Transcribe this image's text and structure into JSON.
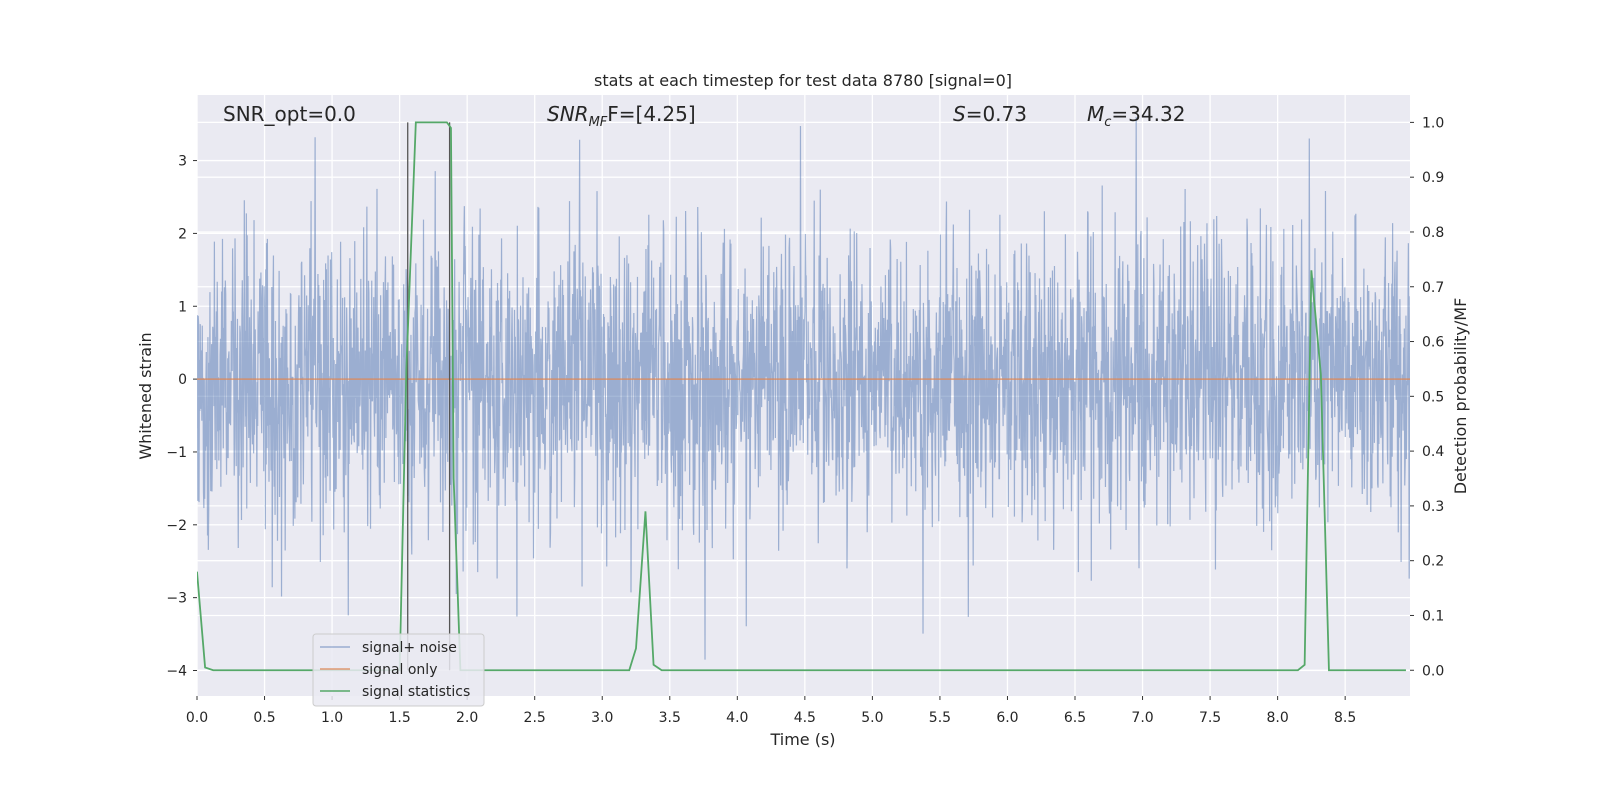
{
  "chart_data": {
    "type": "line",
    "title": "stats at each timestep for test data 8780 [signal=0]",
    "xlabel": "Time (s)",
    "ylabel": "Whitened strain",
    "ylabel_right": "Detection probability/MF",
    "xlim": [
      0,
      8.98
    ],
    "ylim": [
      -4.35,
      3.9
    ],
    "ylim_right": [
      -0.047,
      1.05
    ],
    "x_ticks": [
      0.0,
      0.5,
      1.0,
      1.5,
      2.0,
      2.5,
      3.0,
      3.5,
      4.0,
      4.5,
      5.0,
      5.5,
      6.0,
      6.5,
      7.0,
      7.5,
      8.0,
      8.5
    ],
    "x_tick_labels": [
      "0.0",
      "0.5",
      "1.0",
      "1.5",
      "2.0",
      "2.5",
      "3.0",
      "3.5",
      "4.0",
      "4.5",
      "5.0",
      "5.5",
      "6.0",
      "6.5",
      "7.0",
      "7.5",
      "8.0",
      "8.5"
    ],
    "y_ticks": [
      3,
      2,
      1,
      0,
      -1,
      -2,
      -3,
      -4
    ],
    "y_tick_labels": [
      "3",
      "2",
      "1",
      "0",
      "−1",
      "−2",
      "−3",
      "−4"
    ],
    "y_right_ticks": [
      1.0,
      0.9,
      0.8,
      0.7,
      0.6,
      0.5,
      0.4,
      0.3,
      0.2,
      0.1,
      0.0
    ],
    "y_right_tick_labels": [
      "1.0",
      "0.9",
      "0.8",
      "0.7",
      "0.6",
      "0.5",
      "0.4",
      "0.3",
      "0.2",
      "0.1",
      "0.0"
    ],
    "grid": true,
    "legend_position": "lower-left",
    "annotations": {
      "snr_opt": "SNR_opt=0.0",
      "snr_mf_main": "SNR",
      "snr_mf_sub": "MF",
      "snr_mf_rest": "F=[4.25]",
      "s_italic": "S",
      "s_rest": "=0.73",
      "mc_italic": "M",
      "mc_sub": "c",
      "mc_rest": "=34.32"
    },
    "vertical_lines_x": [
      1.56,
      1.87
    ],
    "series": [
      {
        "name": "signal+ noise",
        "color": "#4c72b0",
        "kind": "noise",
        "amplitude_std": 1.0,
        "range": [
          -3.85,
          3.6
        ]
      },
      {
        "name": "signal only",
        "color": "#dd8452",
        "x": [
          0.0,
          8.98
        ],
        "y": [
          0,
          0
        ]
      },
      {
        "name": "signal statistics",
        "color": "#55a868",
        "axis": "right",
        "x": [
          0.0,
          0.06,
          0.12,
          1.5,
          1.55,
          1.62,
          1.85,
          1.88,
          1.9,
          1.95,
          3.2,
          3.25,
          3.32,
          3.38,
          3.44,
          8.15,
          8.2,
          8.25,
          8.32,
          8.38,
          8.45,
          8.95
        ],
        "y": [
          0.18,
          0.005,
          0.0,
          0.0,
          0.55,
          1.0,
          1.0,
          0.99,
          0.35,
          0.0,
          0.0,
          0.04,
          0.29,
          0.01,
          0.0,
          0.0,
          0.01,
          0.73,
          0.54,
          0.0,
          0.0,
          0.0
        ]
      }
    ]
  }
}
